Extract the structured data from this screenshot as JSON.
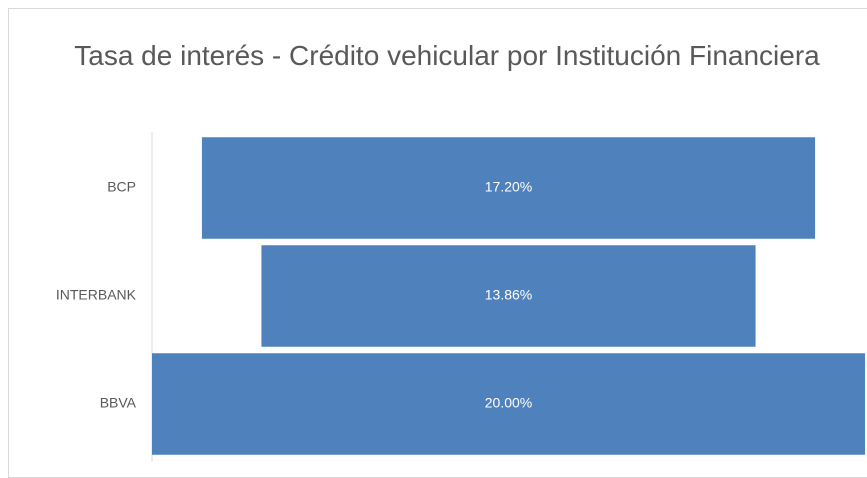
{
  "chart_data": {
    "type": "funnel",
    "title": "Tasa de interés - Crédito vehicular por Institución Financiera",
    "categories": [
      "BCP",
      "INTERBANK",
      "BBVA"
    ],
    "values": [
      17.2,
      13.86,
      20
    ],
    "value_labels": [
      "17.20%",
      "13.86%",
      "20.00%"
    ],
    "color": "#4f81bd"
  }
}
